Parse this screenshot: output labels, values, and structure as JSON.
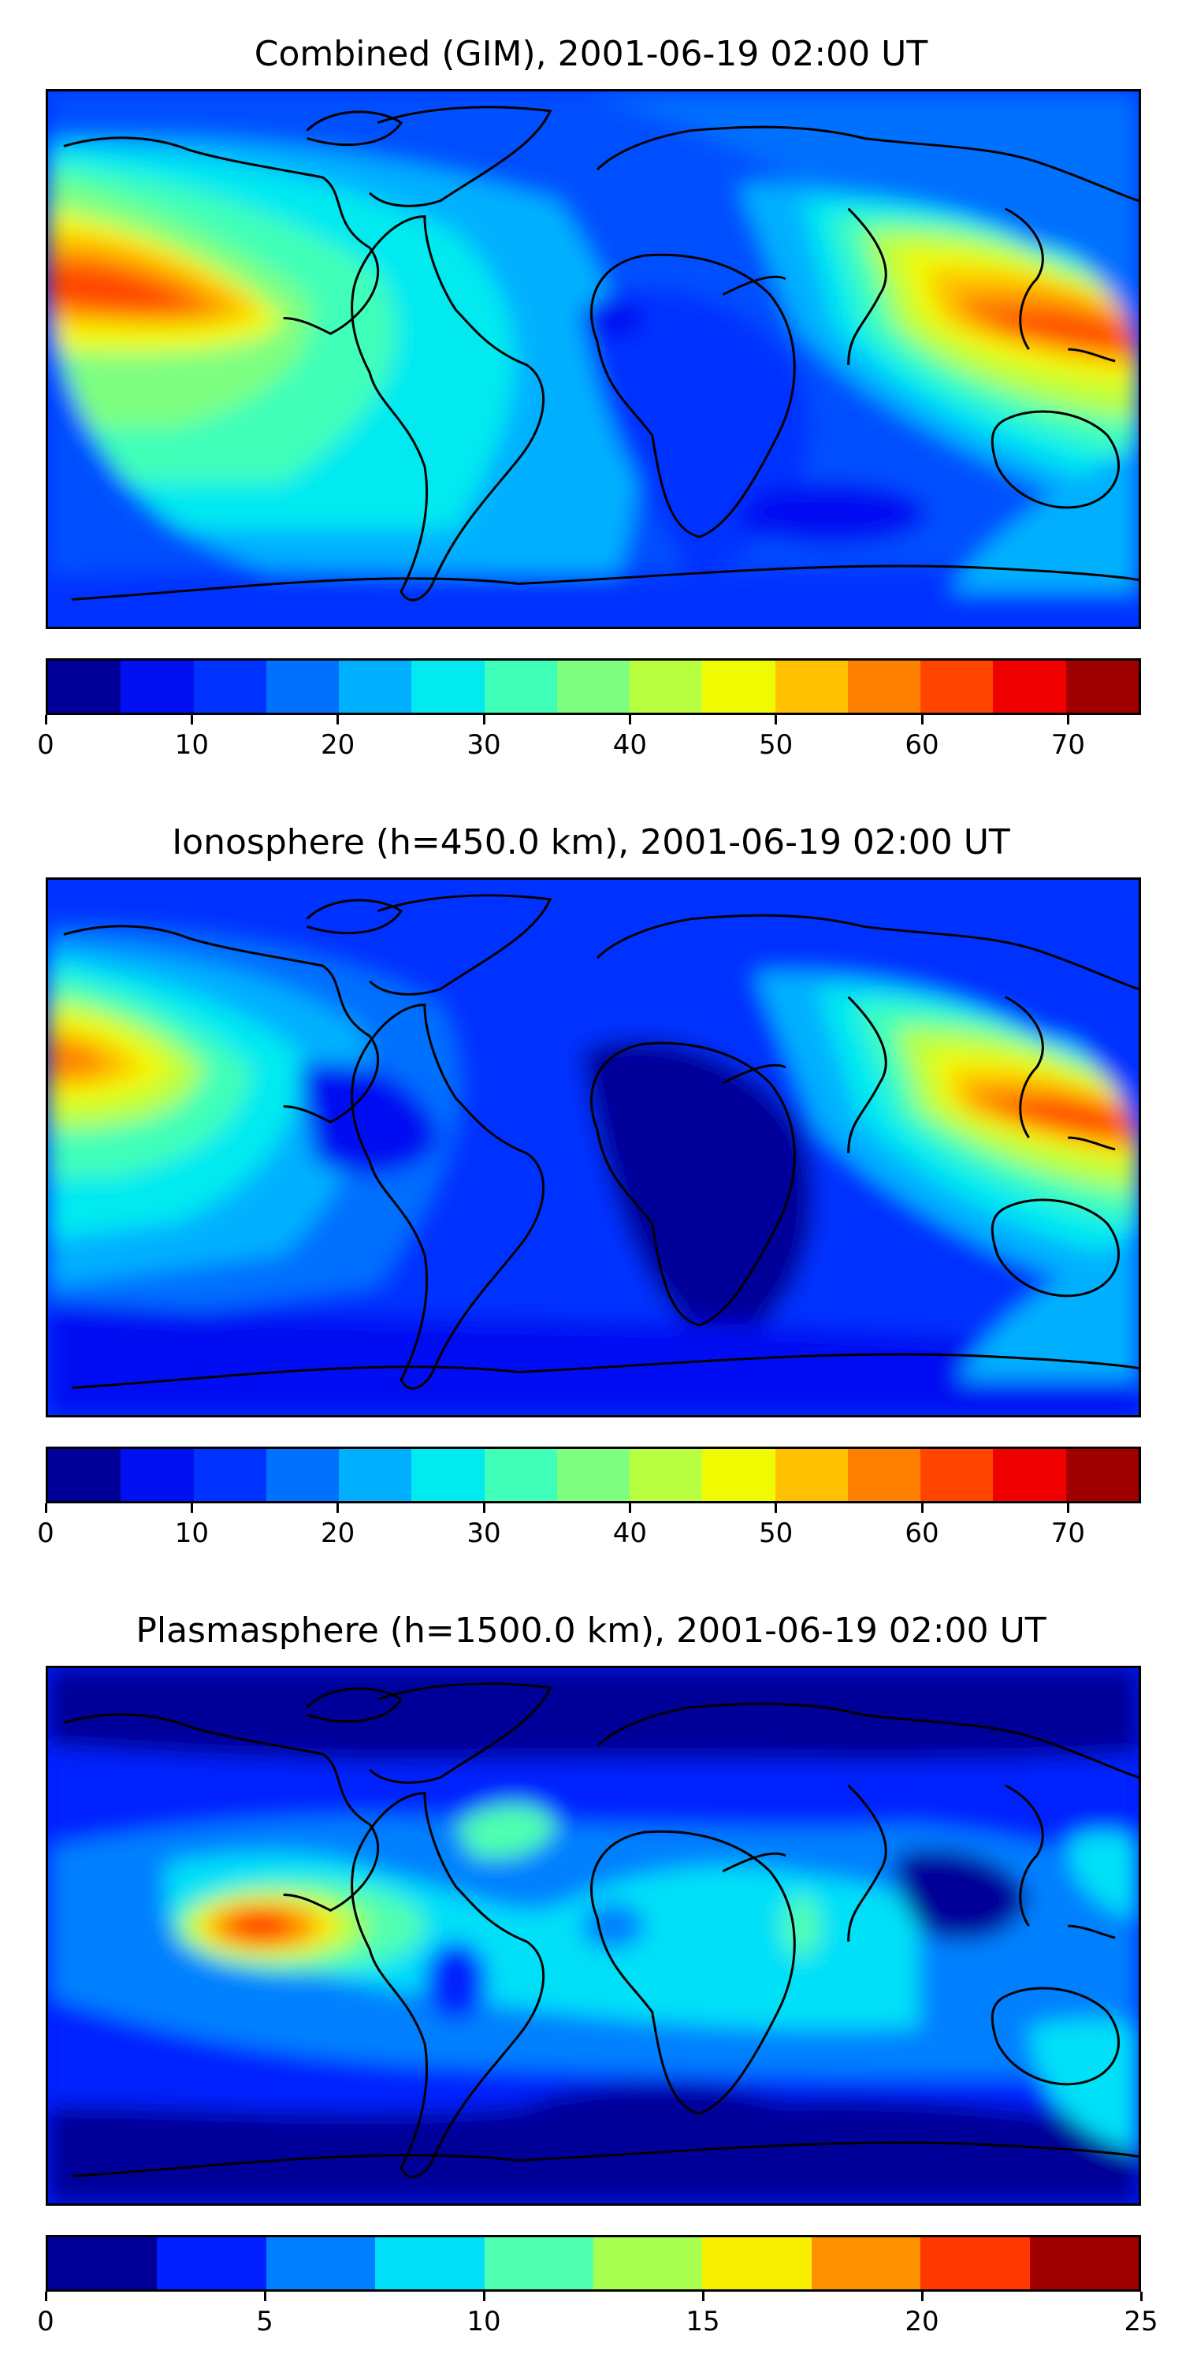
{
  "panels": [
    {
      "title": "Combined (GIM), 2001-06-19 02:00 UT",
      "colorbar": {
        "colors": [
          "#000099",
          "#0010f2",
          "#0033ff",
          "#0070ff",
          "#00b0ff",
          "#00eaf0",
          "#40ffb8",
          "#7eff80",
          "#b8ff40",
          "#f0fa00",
          "#ffc000",
          "#ff8000",
          "#ff4500",
          "#f00000",
          "#a00000"
        ],
        "min": 0,
        "max": 75,
        "ticks": [
          {
            "value": 0,
            "label": "0"
          },
          {
            "value": 10,
            "label": "10"
          },
          {
            "value": 20,
            "label": "20"
          },
          {
            "value": 30,
            "label": "30"
          },
          {
            "value": 40,
            "label": "40"
          },
          {
            "value": 50,
            "label": "50"
          },
          {
            "value": 60,
            "label": "60"
          },
          {
            "value": 70,
            "label": "70"
          }
        ]
      }
    },
    {
      "title": "Ionosphere  (h=450.0 km), 2001-06-19 02:00 UT",
      "colorbar": {
        "colors": [
          "#000099",
          "#0010f2",
          "#0033ff",
          "#0070ff",
          "#00b0ff",
          "#00eaf0",
          "#40ffb8",
          "#7eff80",
          "#b8ff40",
          "#f0fa00",
          "#ffc000",
          "#ff8000",
          "#ff4500",
          "#f00000",
          "#a00000"
        ],
        "min": 0,
        "max": 75,
        "ticks": [
          {
            "value": 0,
            "label": "0"
          },
          {
            "value": 10,
            "label": "10"
          },
          {
            "value": 20,
            "label": "20"
          },
          {
            "value": 30,
            "label": "30"
          },
          {
            "value": 40,
            "label": "40"
          },
          {
            "value": 50,
            "label": "50"
          },
          {
            "value": 60,
            "label": "60"
          },
          {
            "value": 70,
            "label": "70"
          }
        ]
      }
    },
    {
      "title": "Plasmasphere (h=1500.0 km), 2001-06-19 02:00 UT",
      "colorbar": {
        "colors": [
          "#000099",
          "#0020ff",
          "#0080ff",
          "#00e0f8",
          "#50ffb0",
          "#a8ff50",
          "#f8f000",
          "#ff9000",
          "#ff3800",
          "#a00000"
        ],
        "min": 0,
        "max": 25,
        "ticks": [
          {
            "value": 0,
            "label": "0"
          },
          {
            "value": 5,
            "label": "5"
          },
          {
            "value": 10,
            "label": "10"
          },
          {
            "value": 15,
            "label": "15"
          },
          {
            "value": 20,
            "label": "20"
          },
          {
            "value": 25,
            "label": "25"
          }
        ]
      }
    }
  ]
}
